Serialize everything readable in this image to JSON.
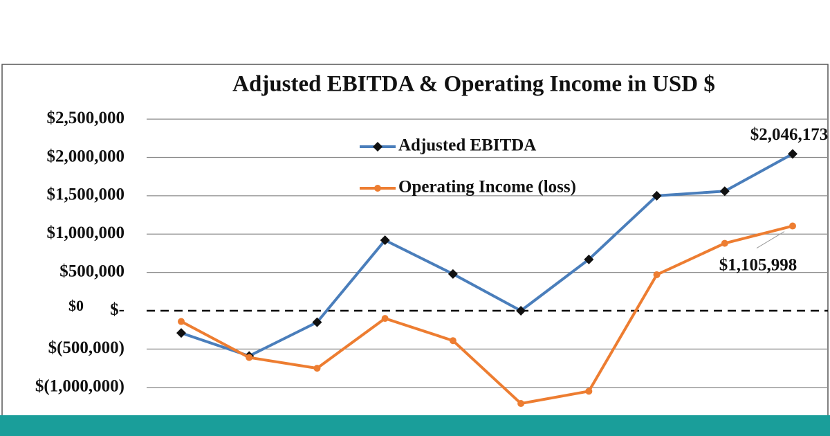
{
  "chart_data": {
    "type": "line",
    "title": "Adjusted EBITDA & Operating Income in USD $",
    "categories": [
      null,
      null,
      null,
      null,
      null,
      null,
      null,
      null,
      null,
      null
    ],
    "series": [
      {
        "name": "Adjusted EBITDA",
        "color": "#4a7ebb",
        "marker": "diamond",
        "values": [
          -290000,
          -590000,
          -150000,
          920000,
          480000,
          0,
          670000,
          1500000,
          1560000,
          2046173
        ],
        "value_labels": [
          null,
          null,
          null,
          null,
          null,
          null,
          null,
          null,
          null,
          "$2,046,173"
        ]
      },
      {
        "name": "Operating Income (loss)",
        "color": "#ed7d31",
        "marker": "circle",
        "values": [
          -140000,
          -610000,
          -750000,
          -100000,
          -390000,
          -1210000,
          -1050000,
          470000,
          880000,
          1105998
        ],
        "value_labels": [
          null,
          null,
          null,
          null,
          null,
          null,
          null,
          null,
          null,
          "$1,105,998"
        ]
      }
    ],
    "ylim": [
      -1300000,
      2700000
    ],
    "yticks": [
      {
        "value": -1000000,
        "label": "$(1,000,000)"
      },
      {
        "value": -500000,
        "label": "$(500,000)"
      },
      {
        "value": 0,
        "label": "$-"
      },
      {
        "value": 500000,
        "label": "$500,000"
      },
      {
        "value": 1000000,
        "label": "$1,000,000"
      },
      {
        "value": 1500000,
        "label": "$1,500,000"
      },
      {
        "value": 2000000,
        "label": "$2,000,000"
      },
      {
        "value": 2500000,
        "label": "$2,500,000"
      }
    ],
    "zero_annotation": "$0",
    "grid": true
  }
}
